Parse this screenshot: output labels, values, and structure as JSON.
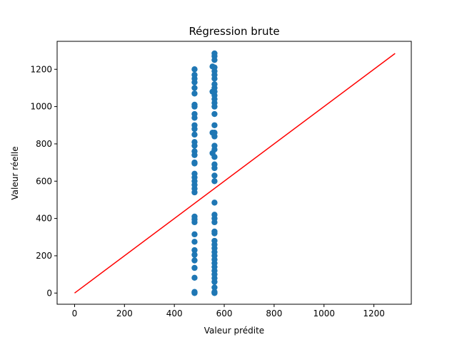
{
  "chart_data": {
    "type": "scatter",
    "title": "Régression brute",
    "xlabel": "Valeur prédite",
    "ylabel": "Valeur réelle",
    "xlim": [
      -70,
      1350
    ],
    "ylim": [
      -60,
      1350
    ],
    "xticks": [
      0,
      200,
      400,
      600,
      800,
      1000,
      1200
    ],
    "yticks": [
      0,
      200,
      400,
      600,
      800,
      1000,
      1200
    ],
    "grid": false,
    "series": [
      {
        "type": "scatter",
        "color": "#1f77b4",
        "points": [
          [
            481,
            0
          ],
          [
            481,
            3
          ],
          [
            481,
            6
          ],
          [
            481,
            82
          ],
          [
            481,
            135
          ],
          [
            481,
            175
          ],
          [
            481,
            205
          ],
          [
            481,
            230
          ],
          [
            481,
            275
          ],
          [
            481,
            315
          ],
          [
            481,
            380
          ],
          [
            481,
            395
          ],
          [
            481,
            410
          ],
          [
            481,
            540
          ],
          [
            481,
            560
          ],
          [
            481,
            580
          ],
          [
            481,
            600
          ],
          [
            481,
            620
          ],
          [
            481,
            640
          ],
          [
            481,
            695
          ],
          [
            481,
            700
          ],
          [
            481,
            740
          ],
          [
            481,
            760
          ],
          [
            481,
            790
          ],
          [
            481,
            810
          ],
          [
            481,
            850
          ],
          [
            481,
            880
          ],
          [
            481,
            900
          ],
          [
            481,
            940
          ],
          [
            481,
            960
          ],
          [
            481,
            1000
          ],
          [
            481,
            1010
          ],
          [
            481,
            1070
          ],
          [
            481,
            1100
          ],
          [
            481,
            1130
          ],
          [
            481,
            1150
          ],
          [
            481,
            1170
          ],
          [
            481,
            1200
          ],
          [
            553,
            1215
          ],
          [
            553,
            1080
          ],
          [
            553,
            860
          ],
          [
            553,
            750
          ],
          [
            561,
            0
          ],
          [
            561,
            3
          ],
          [
            561,
            6
          ],
          [
            561,
            30
          ],
          [
            561,
            60
          ],
          [
            561,
            80
          ],
          [
            561,
            100
          ],
          [
            561,
            120
          ],
          [
            561,
            140
          ],
          [
            561,
            160
          ],
          [
            561,
            180
          ],
          [
            561,
            200
          ],
          [
            561,
            220
          ],
          [
            561,
            240
          ],
          [
            561,
            260
          ],
          [
            561,
            280
          ],
          [
            561,
            320
          ],
          [
            561,
            330
          ],
          [
            561,
            380
          ],
          [
            561,
            400
          ],
          [
            561,
            420
          ],
          [
            561,
            485
          ],
          [
            561,
            600
          ],
          [
            561,
            630
          ],
          [
            561,
            670
          ],
          [
            561,
            690
          ],
          [
            561,
            730
          ],
          [
            561,
            770
          ],
          [
            561,
            790
          ],
          [
            561,
            840
          ],
          [
            561,
            860
          ],
          [
            561,
            900
          ],
          [
            561,
            960
          ],
          [
            561,
            1000
          ],
          [
            561,
            1020
          ],
          [
            561,
            1040
          ],
          [
            561,
            1060
          ],
          [
            561,
            1080
          ],
          [
            561,
            1100
          ],
          [
            561,
            1120
          ],
          [
            561,
            1150
          ],
          [
            561,
            1170
          ],
          [
            561,
            1190
          ],
          [
            561,
            1210
          ],
          [
            561,
            1250
          ],
          [
            561,
            1270
          ],
          [
            561,
            1285
          ]
        ]
      },
      {
        "type": "line",
        "color": "#ff0000",
        "points": [
          [
            0,
            0
          ],
          [
            1285,
            1285
          ]
        ]
      }
    ]
  }
}
